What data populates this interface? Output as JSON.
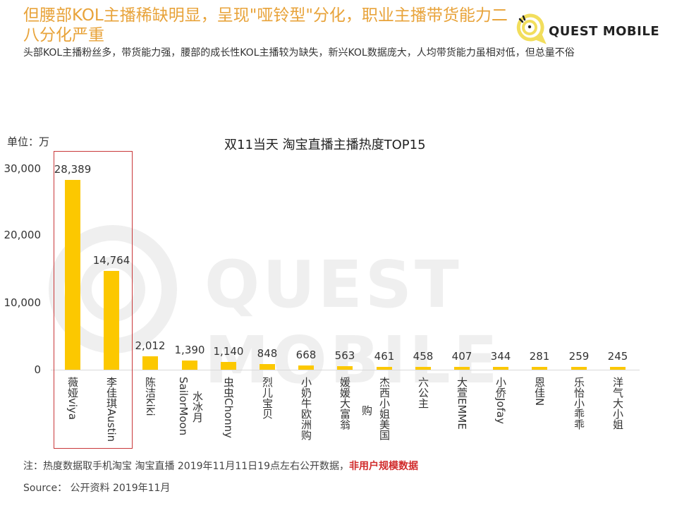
{
  "header": {
    "title": "但腰部KOL主播稀缺明显，呈现\"哑铃型\"分化，职业主播带货能力二八分化严重",
    "subtitle": "头部KOL主播粉丝多，带货能力强，腰部的成长性KOL主播较为缺失，新兴KOL数据庞大，人均带货能力虽相对低，但总量不俗",
    "logo_text": "QUEST MOBILE",
    "logo_icon": "quest-mobile-logo-icon"
  },
  "watermark": "QUEST MOBILE",
  "colors": {
    "title": "#e8a33a",
    "bar": "#fcc800",
    "highlight_border": "#c9383a",
    "note_emphasis": "#d12c2c"
  },
  "chart_data": {
    "type": "bar",
    "title": "双11当天 淘宝直播主播热度TOP15",
    "unit_label": "单位：万",
    "xlabel": "",
    "ylabel": "单位：万",
    "ylim": [
      0,
      30000
    ],
    "yticks": [
      "30,000",
      "20,000",
      "10,000",
      "0"
    ],
    "grid": false,
    "legend": null,
    "categories": [
      "薇娅viya",
      "李佳琪Austin",
      "陈洁kiki",
      "SailorMoon水冰月",
      "虫虫Chonny",
      "烈儿宝贝",
      "小奶牛欧洲购",
      "媛媛大富翁",
      "杰西小姐美国购",
      "六公主",
      "大萱EMME",
      "小侨Jofay",
      "恩佳N",
      "乐怡小乖乖",
      "洋气大小姐"
    ],
    "values": [
      28389,
      14764,
      2012,
      1390,
      1140,
      848,
      668,
      563,
      461,
      458,
      407,
      344,
      281,
      259,
      245
    ],
    "value_labels": [
      "28,389",
      "14,764",
      "2,012",
      "1,390",
      "1,140",
      "848",
      "668",
      "563",
      "461",
      "458",
      "407",
      "344",
      "281",
      "259",
      "245"
    ],
    "annotations": [
      "红框突出前两名：薇娅viya、李佳琪Austin"
    ]
  },
  "footer": {
    "note_prefix": "注：热度数据取手机淘宝 淘宝直播 2019年11月11日19点左右公开数据，",
    "note_emphasis": "非用户规模数据",
    "source": "Source： 公开资料 2019年11月"
  }
}
